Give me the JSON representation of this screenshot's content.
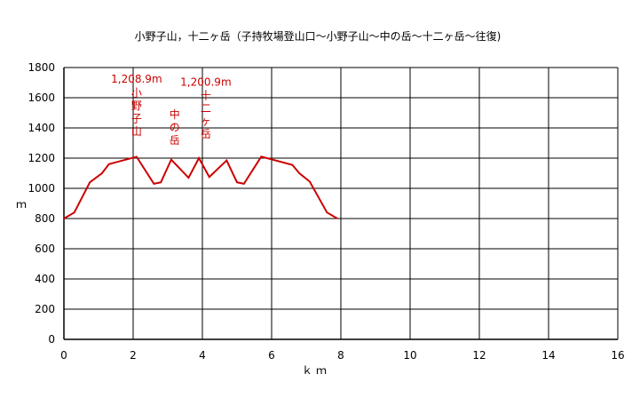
{
  "chart_data": {
    "type": "line",
    "title": "小野子山，十二ヶ岳（子持牧場登山口〜小野子山〜中の岳〜十二ヶ岳〜往復)",
    "xlabel": "ｋｍ",
    "ylabel": "ｍ",
    "xlim": [
      0,
      16
    ],
    "ylim": [
      0,
      1800
    ],
    "x_ticks": [
      "0",
      "2",
      "4",
      "6",
      "8",
      "10",
      "12",
      "14",
      "16"
    ],
    "y_ticks": [
      "0",
      "200",
      "400",
      "600",
      "800",
      "1000",
      "1200",
      "1400",
      "1600",
      "1800"
    ],
    "grid": true,
    "line_color": "#cc0000",
    "series": [
      {
        "x": [
          0,
          0.3,
          0.75,
          1.1,
          1.3,
          2.1,
          2.6,
          2.8,
          3.1,
          3.6,
          3.9,
          4.2,
          4.7,
          5.0,
          5.2,
          5.7,
          6.6,
          6.8,
          7.1,
          7.6,
          7.9
        ],
        "y": [
          800,
          840,
          1040,
          1100,
          1160,
          1209,
          1030,
          1040,
          1190,
          1070,
          1200,
          1075,
          1185,
          1040,
          1030,
          1210,
          1155,
          1100,
          1045,
          840,
          800
        ]
      }
    ],
    "annotations": [
      {
        "text": "1,208.9m",
        "x": 2.1,
        "y": 1700,
        "orientation": "horizontal"
      },
      {
        "text": "小野子山",
        "x": 2.1,
        "y": 1609,
        "orientation": "vertical"
      },
      {
        "text": "中の岳",
        "x": 3.2,
        "y": 1465,
        "orientation": "vertical"
      },
      {
        "text": "1,200.9m",
        "x": 4.1,
        "y": 1680,
        "orientation": "horizontal"
      },
      {
        "text": "十二ヶ岳",
        "x": 4.1,
        "y": 1592,
        "orientation": "vertical"
      }
    ]
  }
}
